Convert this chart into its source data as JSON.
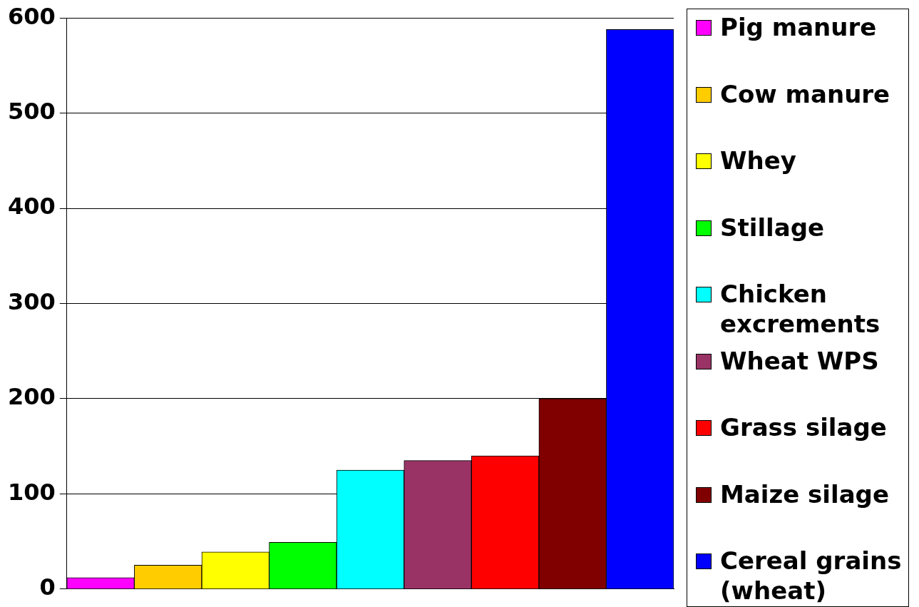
{
  "chart_data": {
    "type": "bar",
    "categories": [
      null,
      null,
      null,
      null,
      null,
      null,
      null,
      null,
      null
    ],
    "series": [
      {
        "name": "Pig manure",
        "color": "#ff00ff",
        "values": [
          12,
          null,
          null,
          null,
          null,
          null,
          null,
          null,
          null
        ]
      },
      {
        "name": "Cow manure",
        "color": "#ffcc00",
        "values": [
          null,
          25,
          null,
          null,
          null,
          null,
          null,
          null,
          null
        ]
      },
      {
        "name": "Whey",
        "color": "#ffff00",
        "values": [
          null,
          null,
          39,
          null,
          null,
          null,
          null,
          null,
          null
        ]
      },
      {
        "name": "Stillage",
        "color": "#00ff00",
        "values": [
          null,
          null,
          null,
          49,
          null,
          null,
          null,
          null,
          null
        ]
      },
      {
        "name": "Chicken excrements",
        "color": "#00ffff",
        "values": [
          null,
          null,
          null,
          null,
          125,
          null,
          null,
          null,
          null
        ]
      },
      {
        "name": "Wheat WPS",
        "color": "#993366",
        "values": [
          null,
          null,
          null,
          null,
          null,
          135,
          null,
          null,
          null
        ]
      },
      {
        "name": "Grass silage",
        "color": "#ff0000",
        "values": [
          null,
          null,
          null,
          null,
          null,
          null,
          140,
          null,
          null
        ]
      },
      {
        "name": "Maize silage",
        "color": "#800000",
        "values": [
          null,
          null,
          null,
          null,
          null,
          null,
          null,
          200,
          null
        ]
      },
      {
        "name": "Cereal grains (wheat)",
        "color": "#0000ff",
        "values": [
          null,
          null,
          null,
          null,
          null,
          null,
          null,
          null,
          588
        ]
      }
    ],
    "ylim": [
      0,
      600
    ],
    "yticks": [
      0,
      100,
      200,
      300,
      400,
      500,
      600
    ],
    "grid": "y",
    "legend": "right",
    "tick_labels": "y"
  }
}
